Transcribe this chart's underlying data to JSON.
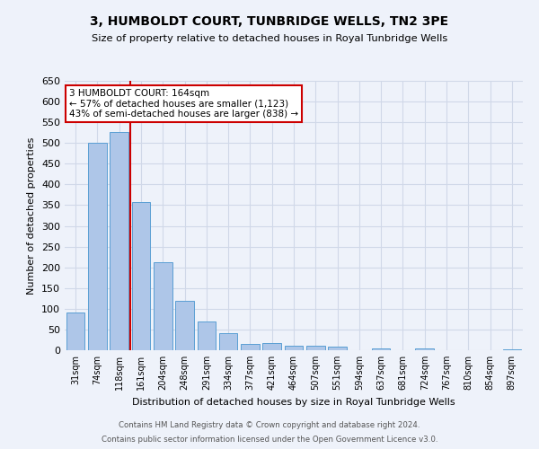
{
  "title": "3, HUMBOLDT COURT, TUNBRIDGE WELLS, TN2 3PE",
  "subtitle": "Size of property relative to detached houses in Royal Tunbridge Wells",
  "xlabel": "Distribution of detached houses by size in Royal Tunbridge Wells",
  "ylabel": "Number of detached properties",
  "footer_line1": "Contains HM Land Registry data © Crown copyright and database right 2024.",
  "footer_line2": "Contains public sector information licensed under the Open Government Licence v3.0.",
  "categories": [
    "31sqm",
    "74sqm",
    "118sqm",
    "161sqm",
    "204sqm",
    "248sqm",
    "291sqm",
    "334sqm",
    "377sqm",
    "421sqm",
    "464sqm",
    "507sqm",
    "551sqm",
    "594sqm",
    "637sqm",
    "681sqm",
    "724sqm",
    "767sqm",
    "810sqm",
    "854sqm",
    "897sqm"
  ],
  "values": [
    90,
    500,
    527,
    358,
    212,
    120,
    70,
    42,
    15,
    18,
    10,
    10,
    8,
    0,
    5,
    0,
    5,
    0,
    0,
    0,
    3
  ],
  "bar_color": "#aec6e8",
  "bar_edge_color": "#5a9fd4",
  "grid_color": "#d0d8e8",
  "background_color": "#eef2fa",
  "annotation_box_color": "#ffffff",
  "annotation_border_color": "#cc0000",
  "red_line_x": 2.5,
  "red_line_color": "#cc0000",
  "property_size": "164sqm",
  "property_name": "3 HUMBOLDT COURT",
  "pct_smaller": 57,
  "num_smaller": 1123,
  "pct_larger_semi": 43,
  "num_larger_semi": 838,
  "ylim": [
    0,
    650
  ],
  "yticks": [
    0,
    50,
    100,
    150,
    200,
    250,
    300,
    350,
    400,
    450,
    500,
    550,
    600,
    650
  ]
}
